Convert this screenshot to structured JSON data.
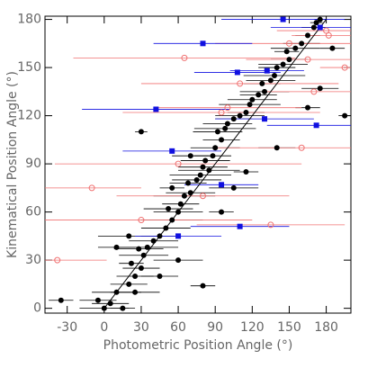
{
  "chart_data": {
    "type": "scatter",
    "xlabel": "Photometric Position Angle (°)",
    "ylabel": "Kinematical Position Angle (°)",
    "xlim": [
      -48,
      200
    ],
    "ylim": [
      -3,
      182
    ],
    "xticks": [
      -30,
      0,
      30,
      60,
      90,
      120,
      150,
      180
    ],
    "yticks": [
      0,
      30,
      60,
      90,
      120,
      150,
      180
    ],
    "line": {
      "x": [
        0,
        180
      ],
      "y": [
        0,
        180
      ],
      "color": "#000000"
    },
    "series": [
      {
        "marker": "filled-circle",
        "color": "#000000",
        "x": [
          -35,
          -5,
          0,
          5,
          10,
          15,
          20,
          25,
          22,
          30,
          32,
          28,
          35,
          40,
          45,
          50,
          55,
          52,
          60,
          62,
          65,
          70,
          68,
          75,
          78,
          80,
          85,
          82,
          88,
          90,
          95,
          92,
          98,
          100,
          105,
          110,
          115,
          118,
          120,
          125,
          130,
          128,
          135,
          138,
          140,
          145,
          150,
          148,
          155,
          160,
          165,
          170,
          172,
          175,
          30,
          80,
          195,
          60,
          10,
          20,
          45,
          25,
          175,
          55,
          70,
          95,
          105,
          115,
          140,
          165,
          185
        ],
        "values": [
          5,
          5,
          0,
          3,
          10,
          0,
          15,
          20,
          28,
          25,
          33,
          37,
          38,
          42,
          45,
          50,
          55,
          62,
          60,
          65,
          70,
          72,
          78,
          80,
          83,
          88,
          86,
          92,
          95,
          100,
          105,
          110,
          112,
          115,
          118,
          120,
          122,
          127,
          130,
          133,
          135,
          140,
          142,
          145,
          150,
          152,
          155,
          160,
          162,
          165,
          170,
          175,
          178,
          180,
          110,
          14,
          120,
          30,
          38,
          45,
          20,
          10,
          137,
          75,
          95,
          60,
          75,
          85,
          100,
          125,
          162
        ],
        "xerr": [
          10,
          15,
          20,
          15,
          20,
          10,
          15,
          15,
          10,
          15,
          20,
          20,
          25,
          20,
          15,
          20,
          25,
          20,
          20,
          15,
          25,
          20,
          15,
          20,
          25,
          20,
          25,
          20,
          15,
          20,
          15,
          20,
          25,
          20,
          15,
          20,
          15,
          25,
          20,
          15,
          20,
          15,
          20,
          25,
          15,
          20,
          15,
          10,
          20,
          15,
          10,
          10,
          5,
          5,
          5,
          10,
          5,
          20,
          15,
          25,
          15,
          20,
          15,
          10,
          15,
          10,
          20,
          10,
          15,
          10,
          10
        ]
      },
      {
        "marker": "open-circle",
        "color": "#f07070",
        "x": [
          -38,
          -10,
          30,
          60,
          65,
          80,
          95,
          100,
          110,
          135,
          150,
          160,
          165,
          170,
          182,
          195,
          180
        ],
        "values": [
          30,
          75,
          55,
          90,
          156,
          70,
          122,
          125,
          140,
          52,
          165,
          100,
          155,
          135,
          170,
          150,
          173
        ],
        "xerr": [
          40,
          40,
          90,
          100,
          90,
          70,
          80,
          60,
          80,
          60,
          60,
          70,
          50,
          40,
          30,
          20,
          40
        ]
      },
      {
        "marker": "square",
        "color": "#1010e0",
        "x": [
          42,
          55,
          60,
          80,
          95,
          108,
          110,
          130,
          132,
          145,
          172,
          175
        ],
        "values": [
          124,
          98,
          45,
          165,
          77,
          147,
          51,
          118,
          148,
          180,
          114,
          175
        ],
        "xerr": [
          60,
          40,
          35,
          40,
          30,
          35,
          40,
          40,
          30,
          50,
          40,
          40
        ]
      }
    ]
  }
}
